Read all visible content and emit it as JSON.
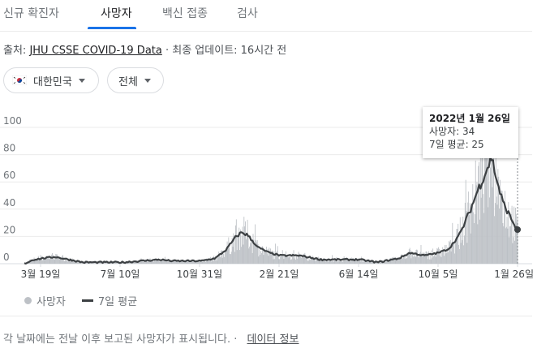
{
  "tabs": [
    {
      "label": "신규 확진자",
      "active": false
    },
    {
      "label": "사망자",
      "active": true
    },
    {
      "label": "백신 접종",
      "active": false
    },
    {
      "label": "검사",
      "active": false
    }
  ],
  "source": {
    "prefix": "출처: ",
    "link": "JHU CSSE COVID-19 Data",
    "updated": " · 최종 업데이트: 16시간 전"
  },
  "filters": {
    "region": "대한민국",
    "period": "전체"
  },
  "tooltip": {
    "date": "2022년 1월 26일",
    "deaths": "사망자: 34",
    "avg": "7일 평균: 25"
  },
  "legend": {
    "bars": "사망자",
    "line": "7일 평균"
  },
  "footer": {
    "note": "각 날짜에는 전날 이후 보고된 사망자가 표시됩니다.",
    "link": "데이터 정보"
  },
  "colors": {
    "bars": "#bdc1c6",
    "avg_line": "#3c4043",
    "accent": "#1a73e8"
  },
  "chart_data": {
    "type": "bar",
    "ylim": [
      0,
      100
    ],
    "yticks": [
      0,
      20,
      40,
      60,
      80,
      100
    ],
    "xticks": [
      "3월 19일",
      "7월 10일",
      "10월 31일",
      "2월 21일",
      "6월 14일",
      "10월 5일",
      "1월 26일"
    ],
    "series": [
      {
        "name": "사망자",
        "type": "bar"
      },
      {
        "name": "7일 평균",
        "type": "line"
      }
    ],
    "avg_keypoints": [
      {
        "date": "2020-02-21",
        "value": 0
      },
      {
        "date": "2020-03-05",
        "value": 3
      },
      {
        "date": "2020-03-19",
        "value": 4
      },
      {
        "date": "2020-04-05",
        "value": 5
      },
      {
        "date": "2020-04-25",
        "value": 3
      },
      {
        "date": "2020-05-15",
        "value": 1
      },
      {
        "date": "2020-07-10",
        "value": 1
      },
      {
        "date": "2020-09-01",
        "value": 3
      },
      {
        "date": "2020-09-20",
        "value": 2
      },
      {
        "date": "2020-10-31",
        "value": 2
      },
      {
        "date": "2020-11-20",
        "value": 4
      },
      {
        "date": "2020-12-05",
        "value": 10
      },
      {
        "date": "2020-12-20",
        "value": 20
      },
      {
        "date": "2020-12-28",
        "value": 23
      },
      {
        "date": "2021-01-05",
        "value": 21
      },
      {
        "date": "2021-01-20",
        "value": 12
      },
      {
        "date": "2021-02-05",
        "value": 8
      },
      {
        "date": "2021-02-21",
        "value": 6
      },
      {
        "date": "2021-03-20",
        "value": 6
      },
      {
        "date": "2021-04-20",
        "value": 3
      },
      {
        "date": "2021-06-14",
        "value": 3
      },
      {
        "date": "2021-07-10",
        "value": 1
      },
      {
        "date": "2021-08-10",
        "value": 4
      },
      {
        "date": "2021-08-25",
        "value": 8
      },
      {
        "date": "2021-09-15",
        "value": 6
      },
      {
        "date": "2021-10-05",
        "value": 8
      },
      {
        "date": "2021-10-20",
        "value": 11
      },
      {
        "date": "2021-11-05",
        "value": 22
      },
      {
        "date": "2021-11-20",
        "value": 40
      },
      {
        "date": "2021-12-01",
        "value": 55
      },
      {
        "date": "2021-12-12",
        "value": 68
      },
      {
        "date": "2021-12-20",
        "value": 78
      },
      {
        "date": "2021-12-28",
        "value": 60
      },
      {
        "date": "2022-01-05",
        "value": 45
      },
      {
        "date": "2022-01-15",
        "value": 35
      },
      {
        "date": "2022-01-22",
        "value": 28
      },
      {
        "date": "2022-01-26",
        "value": 25
      }
    ],
    "highlight": {
      "date": "2022-01-26",
      "deaths": 34,
      "avg": 25
    }
  }
}
